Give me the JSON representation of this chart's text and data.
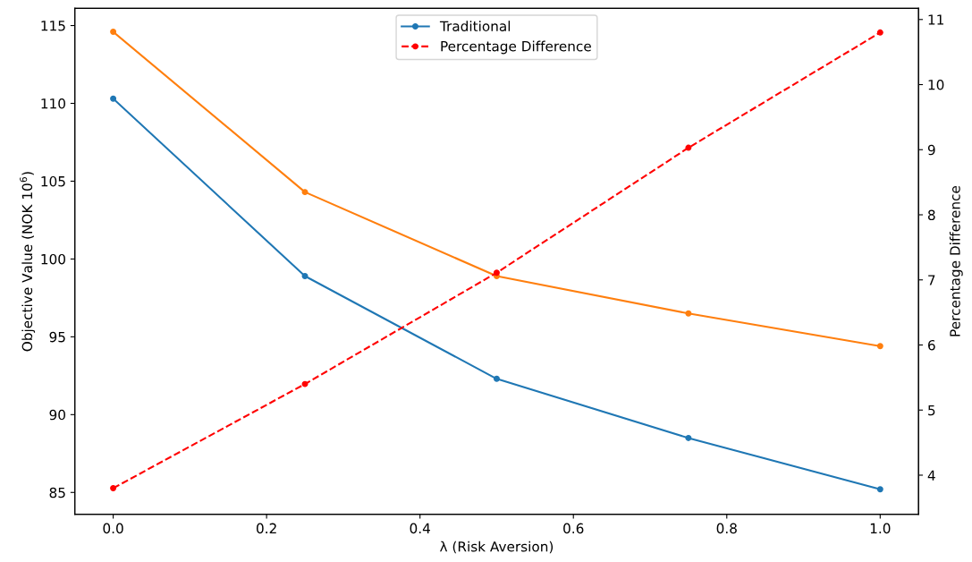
{
  "chart_data": {
    "type": "line",
    "xlabel": "λ (Risk Aversion)",
    "ylabel": "Objective Value (NOK 10$^{6}$)",
    "y2label": "Percentage Difference",
    "x": [
      0.0,
      0.25,
      0.5,
      0.75,
      1.0
    ],
    "series": [
      {
        "name": "Traditional",
        "color": "#1f77b4",
        "values": [
          110.3,
          98.9,
          92.3,
          88.5,
          85.2
        ]
      },
      {
        "color": "#ff7f0e",
        "values": [
          114.6,
          104.3,
          98.9,
          96.5,
          94.4
        ]
      },
      {
        "name": "Percentage Difference",
        "color": "#ff0000",
        "axis": "y2",
        "line_style": "dashed",
        "values": [
          3.8,
          5.4,
          7.11,
          9.03,
          10.8
        ]
      }
    ],
    "xlim": [
      -0.05,
      1.05
    ],
    "xticks": [
      {
        "value": 0,
        "label": "0.0"
      },
      0.2,
      0.4,
      0.6,
      0.8,
      {
        "value": 1,
        "label": "1.0"
      }
    ],
    "ylim": [
      83.6,
      116.1
    ],
    "yticks": [
      85,
      90,
      95,
      100,
      105,
      110,
      115
    ],
    "y2lim": [
      3.4,
      11.17
    ],
    "y2ticks": [
      4,
      5,
      6,
      7,
      8,
      9,
      10,
      11
    ],
    "marker": "circle",
    "line_style": "solid",
    "grid": false,
    "legend": "top"
  }
}
